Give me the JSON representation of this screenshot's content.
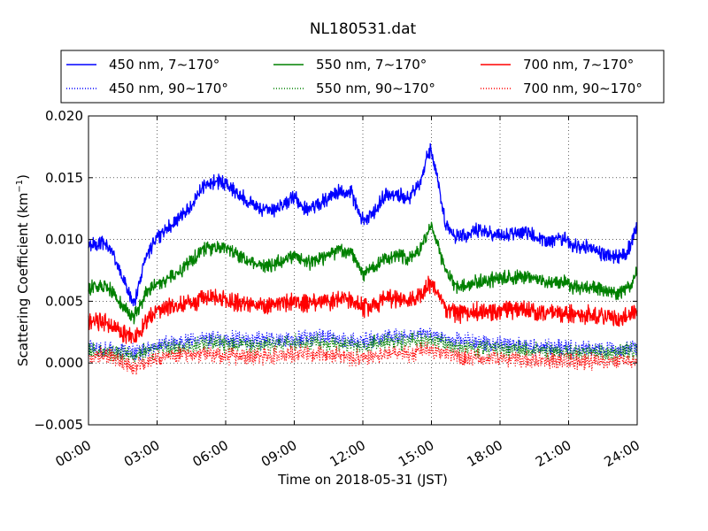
{
  "chart_data": {
    "type": "line",
    "title": "NL180531.dat",
    "xlabel": "Time on 2018-05-31 (JST)",
    "ylabel": "Scattering Coefficient (km",
    "ylabel_sup": "−1",
    "ylabel_end": ")",
    "xlim": [
      0,
      24
    ],
    "ylim": [
      -0.005,
      0.02
    ],
    "x_unit": "hours",
    "xticks": [
      0,
      3,
      6,
      9,
      12,
      15,
      18,
      21,
      24
    ],
    "xtick_labels": [
      "00:00",
      "03:00",
      "06:00",
      "09:00",
      "12:00",
      "15:00",
      "18:00",
      "21:00",
      "24:00"
    ],
    "yticks": [
      -0.005,
      0,
      0.005,
      0.01,
      0.015,
      0.02
    ],
    "ytick_labels": [
      "−0.005",
      "0.000",
      "0.005",
      "0.010",
      "0.015",
      "0.020"
    ],
    "grid": "dotted",
    "legend_position": "top, above plot, 3 columns",
    "series": [
      {
        "name": "450 nm, 7∼170°",
        "color": "#0000ff",
        "style": "solid",
        "x": [
          0,
          0.5,
          1,
          1.5,
          2,
          2.5,
          3,
          3.5,
          4,
          4.5,
          5,
          5.5,
          6,
          6.5,
          7,
          7.5,
          8,
          8.5,
          9,
          9.5,
          10,
          10.5,
          11,
          11.5,
          12,
          12.5,
          13,
          13.5,
          14,
          14.5,
          14.8,
          15,
          15.3,
          15.6,
          16,
          16.5,
          17,
          17.5,
          18,
          18.5,
          19,
          19.5,
          20,
          20.5,
          21,
          21.5,
          22,
          22.5,
          23,
          23.5,
          24
        ],
        "y": [
          0.0095,
          0.0098,
          0.0092,
          0.0068,
          0.0048,
          0.0086,
          0.0102,
          0.011,
          0.0118,
          0.0128,
          0.0142,
          0.0147,
          0.0145,
          0.0138,
          0.013,
          0.0125,
          0.0124,
          0.0127,
          0.0135,
          0.0125,
          0.0128,
          0.0133,
          0.014,
          0.0138,
          0.0115,
          0.0122,
          0.0137,
          0.0136,
          0.0134,
          0.0145,
          0.0168,
          0.0172,
          0.0148,
          0.0112,
          0.0102,
          0.0103,
          0.0108,
          0.0105,
          0.0104,
          0.0105,
          0.0106,
          0.0103,
          0.0098,
          0.0102,
          0.0099,
          0.0092,
          0.0095,
          0.0088,
          0.0086,
          0.0087,
          0.011
        ]
      },
      {
        "name": "450 nm, 90∼170°",
        "color": "#0000ff",
        "style": "dotted",
        "x": [
          0,
          1,
          2,
          3,
          4,
          5,
          6,
          7,
          8,
          9,
          10,
          11,
          12,
          13,
          14,
          15,
          16,
          17,
          18,
          19,
          20,
          21,
          22,
          23,
          24
        ],
        "y": [
          0.0012,
          0.0011,
          0.0008,
          0.0014,
          0.0017,
          0.002,
          0.0019,
          0.0018,
          0.0019,
          0.002,
          0.0021,
          0.0019,
          0.0018,
          0.0021,
          0.0022,
          0.0024,
          0.0018,
          0.0016,
          0.0015,
          0.0014,
          0.0013,
          0.0012,
          0.0011,
          0.001,
          0.0013
        ]
      },
      {
        "name": "550 nm, 7∼170°",
        "color": "#008000",
        "style": "solid",
        "x": [
          0,
          0.5,
          1,
          1.5,
          2,
          2.5,
          3,
          3.5,
          4,
          4.5,
          5,
          5.5,
          6,
          6.5,
          7,
          7.5,
          8,
          8.5,
          9,
          9.5,
          10,
          10.5,
          11,
          11.5,
          12,
          12.5,
          13,
          13.5,
          14,
          14.5,
          14.8,
          15,
          15.3,
          15.6,
          16,
          16.5,
          17,
          17.5,
          18,
          18.5,
          19,
          19.5,
          20,
          20.5,
          21,
          21.5,
          22,
          22.5,
          23,
          23.5,
          24
        ],
        "y": [
          0.006,
          0.0062,
          0.0058,
          0.0045,
          0.0038,
          0.0055,
          0.0065,
          0.0069,
          0.0074,
          0.0082,
          0.0092,
          0.0094,
          0.0093,
          0.0088,
          0.0082,
          0.0079,
          0.0079,
          0.0082,
          0.0088,
          0.0081,
          0.0083,
          0.0087,
          0.0093,
          0.0089,
          0.0072,
          0.0077,
          0.0086,
          0.0087,
          0.0085,
          0.0091,
          0.0105,
          0.0112,
          0.0094,
          0.0075,
          0.0063,
          0.0062,
          0.0066,
          0.0067,
          0.0068,
          0.0069,
          0.007,
          0.0068,
          0.0065,
          0.0066,
          0.0064,
          0.006,
          0.0062,
          0.0058,
          0.0057,
          0.0058,
          0.0073
        ]
      },
      {
        "name": "550 nm, 90∼170°",
        "color": "#008000",
        "style": "dotted",
        "x": [
          0,
          1,
          2,
          3,
          4,
          5,
          6,
          7,
          8,
          9,
          10,
          11,
          12,
          13,
          14,
          15,
          16,
          17,
          18,
          19,
          20,
          21,
          22,
          23,
          24
        ],
        "y": [
          0.001,
          0.0009,
          0.0006,
          0.0011,
          0.0013,
          0.0016,
          0.0015,
          0.0014,
          0.0015,
          0.0016,
          0.0017,
          0.0015,
          0.0014,
          0.0017,
          0.0018,
          0.0019,
          0.0014,
          0.0012,
          0.0012,
          0.0011,
          0.001,
          0.0009,
          0.0009,
          0.0008,
          0.001
        ]
      },
      {
        "name": "700 nm, 7∼170°",
        "color": "#ff0000",
        "style": "solid",
        "x": [
          0,
          0.5,
          1,
          1.5,
          2,
          2.5,
          3,
          3.5,
          4,
          4.5,
          5,
          5.5,
          6,
          6.5,
          7,
          7.5,
          8,
          8.5,
          9,
          9.5,
          10,
          10.5,
          11,
          11.5,
          12,
          12.5,
          13,
          13.5,
          14,
          14.5,
          14.8,
          15,
          15.3,
          15.6,
          16,
          16.5,
          17,
          17.5,
          18,
          18.5,
          19,
          19.5,
          20,
          20.5,
          21,
          21.5,
          22,
          22.5,
          23,
          23.5,
          24
        ],
        "y": [
          0.0032,
          0.0034,
          0.003,
          0.0024,
          0.002,
          0.0033,
          0.0042,
          0.0045,
          0.0047,
          0.0049,
          0.0053,
          0.0052,
          0.0051,
          0.005,
          0.0048,
          0.0047,
          0.0047,
          0.0048,
          0.005,
          0.0048,
          0.0049,
          0.005,
          0.0053,
          0.0052,
          0.0044,
          0.0047,
          0.0052,
          0.0052,
          0.0051,
          0.0055,
          0.0062,
          0.0064,
          0.0055,
          0.0045,
          0.0041,
          0.004,
          0.0042,
          0.0041,
          0.0042,
          0.0043,
          0.0044,
          0.0042,
          0.0041,
          0.0042,
          0.004,
          0.0038,
          0.0039,
          0.0037,
          0.0036,
          0.0037,
          0.0041
        ]
      },
      {
        "name": "700 nm, 90∼170°",
        "color": "#ff0000",
        "style": "dotted",
        "x": [
          0,
          1,
          2,
          3,
          4,
          5,
          6,
          7,
          8,
          9,
          10,
          11,
          12,
          13,
          14,
          15,
          16,
          17,
          18,
          19,
          20,
          21,
          22,
          23,
          24
        ],
        "y": [
          0.0006,
          0.0005,
          -0.0003,
          0.0004,
          0.0006,
          0.0008,
          0.0006,
          0.0005,
          0.0006,
          0.0007,
          0.0008,
          0.0006,
          0.0004,
          0.0007,
          0.0008,
          0.001,
          0.0006,
          0.0004,
          0.0004,
          0.0003,
          0.0002,
          0.0002,
          0.0001,
          0.0001,
          0.0003
        ]
      }
    ]
  }
}
